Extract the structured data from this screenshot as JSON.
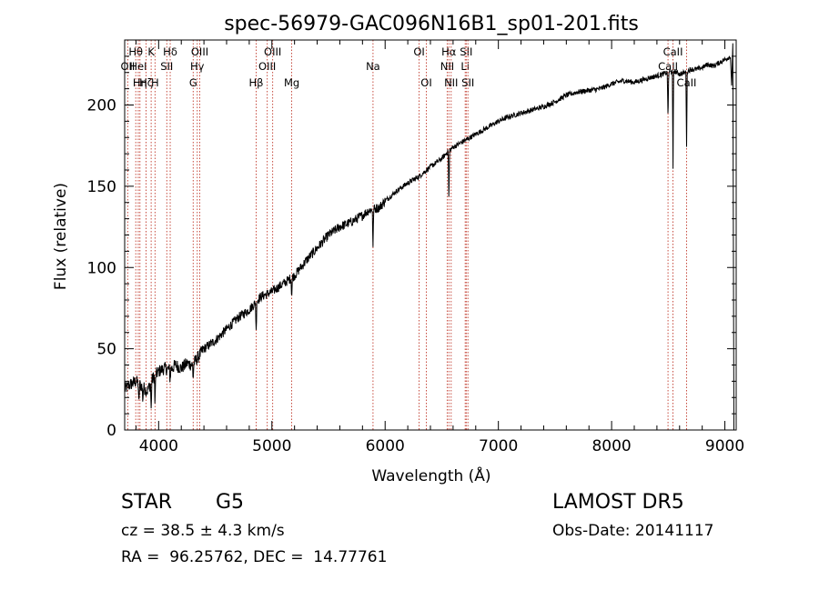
{
  "chart_data": {
    "type": "line",
    "title": "spec-56979-GAC096N16B1_sp01-201.fits",
    "xlabel": "Wavelength (Å)",
    "ylabel": "Flux (relative)",
    "xlim": [
      3700,
      9100
    ],
    "ylim": [
      0,
      240
    ],
    "x_ticks": [
      4000,
      5000,
      6000,
      7000,
      8000,
      9000
    ],
    "y_ticks": [
      0,
      50,
      100,
      150,
      200
    ],
    "grid": false,
    "series": [
      {
        "x": [
          3700,
          3750,
          3800,
          3850,
          3900,
          3950,
          4000,
          4050,
          4100,
          4150,
          4200,
          4250,
          4300,
          4350,
          4400,
          4500,
          4600,
          4700,
          4800,
          4850,
          4900,
          5000,
          5100,
          5200,
          5300,
          5400,
          5500,
          5600,
          5700,
          5800,
          5850,
          5900,
          5950,
          6000,
          6100,
          6200,
          6300,
          6350,
          6400,
          6500,
          6550,
          6600,
          6700,
          6800,
          6900,
          7000,
          7100,
          7200,
          7300,
          7400,
          7500,
          7600,
          7700,
          7800,
          7900,
          8000,
          8100,
          8200,
          8300,
          8400,
          8450,
          8500,
          8550,
          8600,
          8650,
          8700,
          8750,
          8800,
          8850,
          8900,
          8950,
          9000,
          9050
        ],
        "y": [
          25,
          28,
          30,
          27,
          24,
          32,
          36,
          38,
          37,
          40,
          38,
          41,
          40,
          45,
          50,
          55,
          62,
          69,
          74,
          78,
          82,
          85,
          90,
          95,
          104,
          112,
          120,
          125,
          128,
          132,
          135,
          136,
          137,
          141,
          147,
          152,
          156,
          159,
          162,
          167,
          171,
          174,
          178,
          182,
          186,
          190,
          193,
          195,
          197,
          199,
          202,
          206,
          208,
          209,
          210,
          213,
          215,
          214,
          216,
          218,
          219,
          220,
          221,
          219,
          220,
          222,
          222,
          223,
          225,
          224,
          226,
          228,
          230
        ]
      }
    ],
    "absorption_dips": [
      {
        "x": 3825,
        "y": 14
      },
      {
        "x": 3860,
        "y": 18
      },
      {
        "x": 3934,
        "y": 12
      },
      {
        "x": 3968,
        "y": 14
      },
      {
        "x": 4101,
        "y": 30
      },
      {
        "x": 4305,
        "y": 31
      },
      {
        "x": 4861,
        "y": 60
      },
      {
        "x": 5175,
        "y": 82
      },
      {
        "x": 5893,
        "y": 112
      },
      {
        "x": 6563,
        "y": 138
      },
      {
        "x": 8498,
        "y": 188
      },
      {
        "x": 8542,
        "y": 160
      },
      {
        "x": 8662,
        "y": 175
      }
    ],
    "lines": [
      {
        "x": 3727,
        "label": "OII",
        "row": 2
      },
      {
        "x": 3798,
        "label": "Hθ",
        "row": 1
      },
      {
        "x": 3820,
        "label": "HeI",
        "row": 2
      },
      {
        "x": 3835,
        "label": "Hη",
        "row": 3
      },
      {
        "x": 3889,
        "label": "Hζ",
        "row": 3
      },
      {
        "x": 3934,
        "label": "K",
        "row": 1
      },
      {
        "x": 3968,
        "label": "H",
        "row": 3
      },
      {
        "x": 4072,
        "label": "SII",
        "row": 2
      },
      {
        "x": 4102,
        "label": "Hδ",
        "row": 1
      },
      {
        "x": 4305,
        "label": "G",
        "row": 3
      },
      {
        "x": 4341,
        "label": "Hγ",
        "row": 2
      },
      {
        "x": 4363,
        "label": "OIII",
        "row": 1
      },
      {
        "x": 4861,
        "label": "Hβ",
        "row": 3
      },
      {
        "x": 4959,
        "label": "OIII",
        "row": 2
      },
      {
        "x": 5007,
        "label": "OIII",
        "row": 1
      },
      {
        "x": 5175,
        "label": "Mg",
        "row": 3
      },
      {
        "x": 5893,
        "label": "Na",
        "row": 2
      },
      {
        "x": 6300,
        "label": "OI",
        "row": 1
      },
      {
        "x": 6364,
        "label": "OI",
        "row": 3
      },
      {
        "x": 6548,
        "label": "NII",
        "row": 2
      },
      {
        "x": 6563,
        "label": "Hα",
        "row": 1
      },
      {
        "x": 6583,
        "label": "NII",
        "row": 3
      },
      {
        "x": 6707,
        "label": "Li",
        "row": 2
      },
      {
        "x": 6716,
        "label": "SII",
        "row": 1
      },
      {
        "x": 6731,
        "label": "SII",
        "row": 3
      },
      {
        "x": 8498,
        "label": "CaII",
        "row": 2
      },
      {
        "x": 8542,
        "label": "CaII",
        "row": 1
      },
      {
        "x": 8662,
        "label": "CaII",
        "row": 3
      }
    ]
  },
  "info": {
    "class": "STAR",
    "subclass": "G5",
    "survey": "LAMOST DR5",
    "cz": "cz = 38.5 ± 4.3 km/s",
    "obs_date": "Obs-Date: 20141117",
    "radec": "RA =  96.25762, DEC =  14.77761"
  }
}
